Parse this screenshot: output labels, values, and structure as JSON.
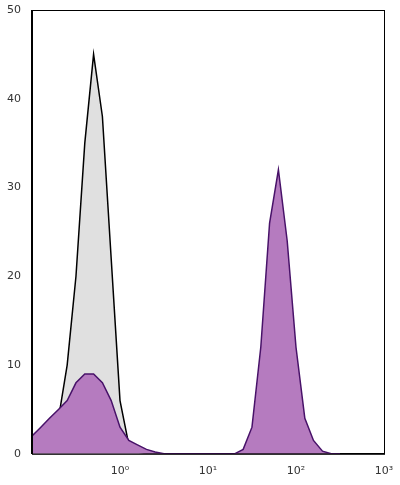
{
  "chart_data": {
    "type": "area",
    "log": "x",
    "grid": false,
    "x": [
      0.1,
      0.126,
      0.158,
      0.2,
      0.251,
      0.316,
      0.398,
      0.501,
      0.631,
      0.794,
      1,
      1.26,
      1.58,
      2,
      2.51,
      3.16,
      3.98,
      5.01,
      6.31,
      7.94,
      10,
      12.6,
      15.8,
      20,
      25.1,
      31.6,
      39.8,
      50.1,
      63.1,
      79.4,
      100,
      126,
      158,
      200,
      251,
      316
    ],
    "series": [
      {
        "color": "#e0e0e0",
        "values": [
          0.5,
          1,
          2,
          4,
          10,
          20,
          35,
          45,
          38,
          22,
          6,
          1,
          0.2,
          0,
          0,
          0,
          0,
          0,
          0,
          0,
          0,
          0,
          0,
          0,
          0,
          0,
          0,
          0,
          0,
          0,
          0,
          0,
          0,
          0,
          0,
          0
        ]
      },
      {
        "color": "#b57bbf",
        "values": [
          2,
          3,
          4,
          5,
          6,
          8,
          9,
          9,
          8,
          6,
          3,
          1.5,
          1,
          0.5,
          0.2,
          0,
          0,
          0,
          0,
          0,
          0,
          0,
          0,
          0,
          0.5,
          3,
          12,
          26,
          32,
          24,
          12,
          4,
          1.5,
          0.3,
          0,
          0
        ]
      }
    ],
    "xlim": [
      0.1,
      1000
    ],
    "xticks": [
      {
        "value": 1,
        "label": "10⁰"
      },
      {
        "value": 10,
        "label": "10¹"
      },
      {
        "value": 100,
        "label": "10²"
      },
      {
        "value": 1000,
        "label": "10³"
      }
    ],
    "ylim": [
      0,
      50
    ],
    "yticks": [
      0,
      10,
      20,
      30,
      40,
      50
    ]
  }
}
